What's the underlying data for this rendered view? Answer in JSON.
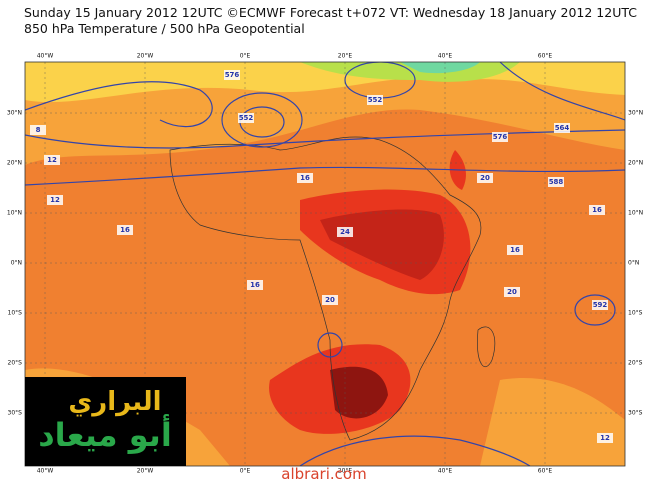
{
  "header": {
    "line1": "Sunday 15 January 2012 12UTC ©ECMWF Forecast t+072 VT: Wednesday 18 January 2012 12UTC",
    "line2": "850 hPa Temperature / 500 hPa Geopotential"
  },
  "map": {
    "longitudes": [
      "40°W",
      "20°W",
      "0°E",
      "20°E",
      "40°E",
      "60°E"
    ],
    "latitudes": [
      "30°N",
      "20°N",
      "10°N",
      "0°N",
      "10°S",
      "20°S",
      "30°S"
    ],
    "contour_labels": [
      "576",
      "552",
      "8",
      "12",
      "16",
      "16",
      "16",
      "20",
      "24",
      "20",
      "16",
      "576",
      "564",
      "552",
      "16",
      "20",
      "592",
      "588",
      "12",
      "12"
    ]
  },
  "watermark": {
    "line1": "البراري",
    "line2": "أبو ميعاد"
  },
  "footer": "albrari.com"
}
